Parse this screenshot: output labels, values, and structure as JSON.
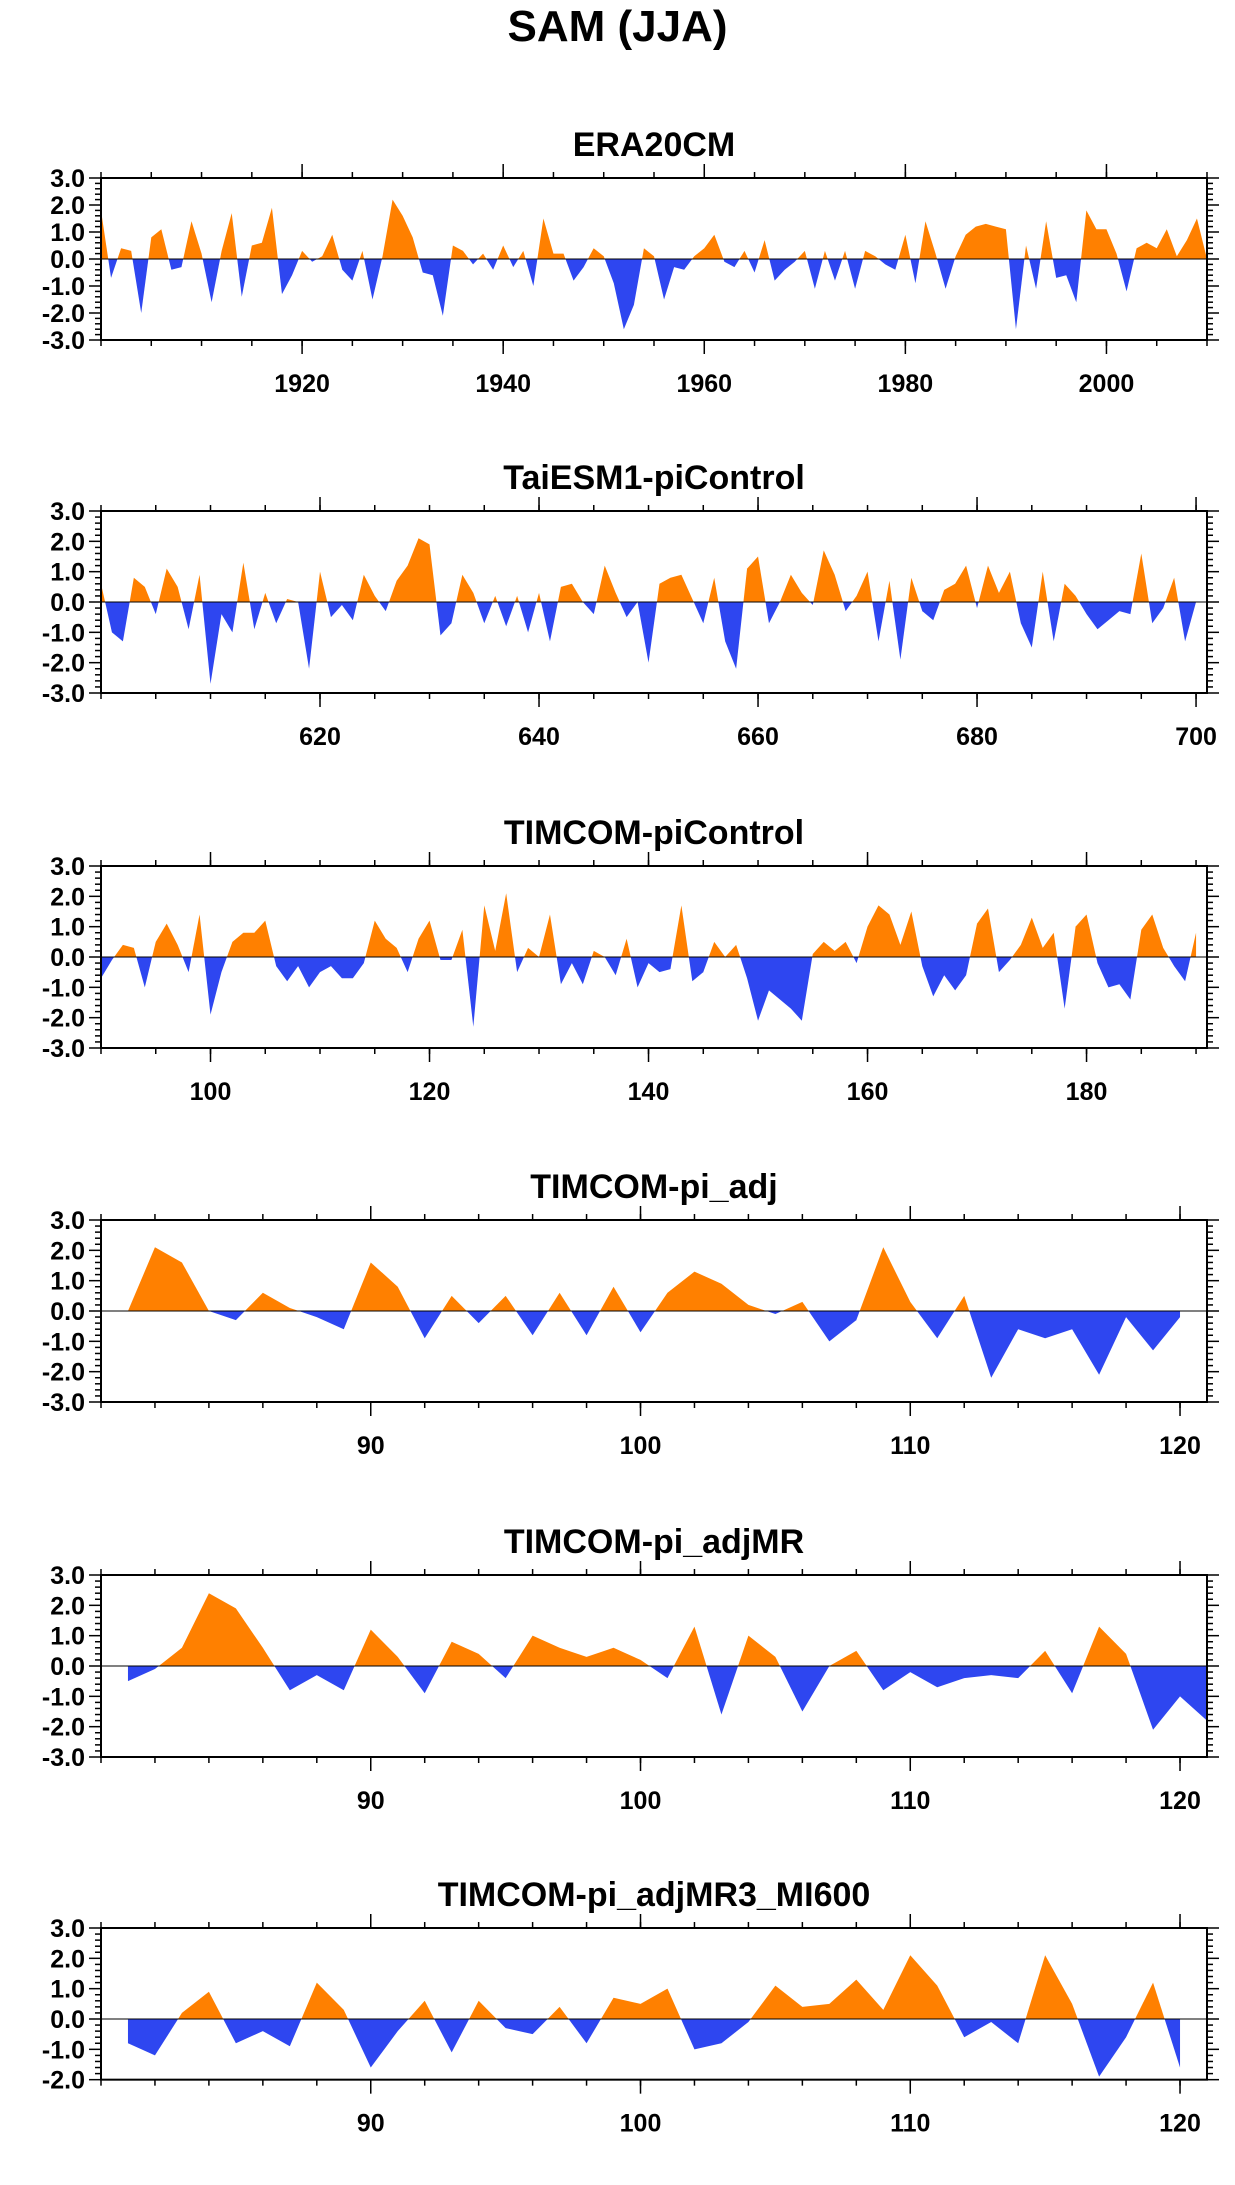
{
  "figure": {
    "title": "SAM (JJA)"
  },
  "colors": {
    "positive": "#ff8000",
    "negative": "#2e46f0",
    "axis": "#000000"
  },
  "chart_data": [
    {
      "type": "area",
      "title": "ERA20CM",
      "xlim": [
        1900,
        2010
      ],
      "ylim": [
        -3.0,
        3.0
      ],
      "yticks": [
        "3.0",
        "2.0",
        "1.0",
        "0.0",
        "-1.0",
        "-2.0",
        "-3.0"
      ],
      "xticks": [
        "1920",
        "1940",
        "1960",
        "1980",
        "2000"
      ],
      "xtick_values": [
        1920,
        1940,
        1960,
        1980,
        2000
      ],
      "x_start": 1900,
      "x_step": 1,
      "values": [
        1.8,
        -0.7,
        0.4,
        0.3,
        -2.0,
        0.8,
        1.1,
        -0.4,
        -0.3,
        1.4,
        0.2,
        -1.6,
        0.3,
        1.7,
        -1.4,
        0.5,
        0.6,
        1.9,
        -1.3,
        -0.6,
        0.3,
        -0.1,
        0.1,
        0.9,
        -0.4,
        -0.8,
        0.3,
        -1.5,
        0.1,
        2.2,
        1.6,
        0.8,
        -0.5,
        -0.6,
        -2.1,
        0.5,
        0.3,
        -0.2,
        0.2,
        -0.4,
        0.5,
        -0.3,
        0.3,
        -1.0,
        1.5,
        0.2,
        0.2,
        -0.8,
        -0.3,
        0.4,
        0.1,
        -0.9,
        -2.6,
        -1.7,
        0.4,
        0.1,
        -1.5,
        -0.3,
        -0.4,
        0.1,
        0.4,
        0.9,
        -0.1,
        -0.3,
        0.3,
        -0.5,
        0.7,
        -0.8,
        -0.4,
        -0.1,
        0.3,
        -1.1,
        0.3,
        -0.8,
        0.3,
        -1.1,
        0.3,
        0.1,
        -0.2,
        -0.4,
        0.9,
        -0.9,
        1.4,
        0.2,
        -1.1,
        0.1,
        0.9,
        1.2,
        1.3,
        1.2,
        1.1,
        -2.6,
        0.5,
        -1.1,
        1.4,
        -0.7,
        -0.6,
        -1.6,
        1.8,
        1.1,
        1.1,
        0.2,
        -1.2,
        0.4,
        0.6,
        0.4,
        1.1,
        0.1,
        0.7,
        1.5,
        0.0
      ]
    },
    {
      "type": "area",
      "title": "TaiESM1-piControl",
      "xlim": [
        600,
        701
      ],
      "ylim": [
        -3.0,
        3.0
      ],
      "yticks": [
        "3.0",
        "2.0",
        "1.0",
        "0.0",
        "-1.0",
        "-2.0",
        "-3.0"
      ],
      "xticks": [
        "620",
        "640",
        "660",
        "680",
        "700"
      ],
      "xtick_values": [
        620,
        640,
        660,
        680,
        700
      ],
      "x_start": 600,
      "x_step": 1,
      "values": [
        0.6,
        -1.0,
        -1.3,
        0.8,
        0.5,
        -0.4,
        1.1,
        0.5,
        -0.9,
        0.9,
        -2.7,
        -0.4,
        -1.0,
        1.3,
        -0.9,
        0.3,
        -0.7,
        0.1,
        0.0,
        -2.2,
        1.0,
        -0.5,
        -0.1,
        -0.6,
        0.9,
        0.2,
        -0.3,
        0.7,
        1.2,
        2.1,
        1.9,
        -1.1,
        -0.7,
        0.9,
        0.3,
        -0.7,
        0.2,
        -0.8,
        0.2,
        -1.0,
        0.3,
        -1.3,
        0.5,
        0.6,
        0.0,
        -0.4,
        1.2,
        0.3,
        -0.5,
        0.0,
        -2.0,
        0.6,
        0.8,
        0.9,
        0.1,
        -0.7,
        0.8,
        -1.3,
        -2.2,
        1.1,
        1.5,
        -0.7,
        0.0,
        0.9,
        0.3,
        -0.1,
        1.7,
        0.9,
        -0.3,
        0.2,
        1.0,
        -1.3,
        0.7,
        -1.9,
        0.8,
        -0.3,
        -0.6,
        0.4,
        0.6,
        1.2,
        -0.2,
        1.2,
        0.3,
        1.0,
        -0.7,
        -1.5,
        1.0,
        -1.3,
        0.6,
        0.2,
        -0.4,
        -0.9,
        -0.6,
        -0.3,
        -0.4,
        1.6,
        -0.7,
        -0.2,
        0.8,
        -1.3,
        0.0
      ]
    },
    {
      "type": "area",
      "title": "TIMCOM-piControl",
      "xlim": [
        90,
        191
      ],
      "ylim": [
        -3.0,
        3.0
      ],
      "yticks": [
        "3.0",
        "2.0",
        "1.0",
        "0.0",
        "-1.0",
        "-2.0",
        "-3.0"
      ],
      "xticks": [
        "100",
        "120",
        "140",
        "160",
        "180"
      ],
      "xtick_values": [
        100,
        120,
        140,
        160,
        180
      ],
      "x_start": 90,
      "x_step": 1,
      "values": [
        -0.7,
        -0.1,
        0.4,
        0.3,
        -1.0,
        0.5,
        1.1,
        0.4,
        -0.5,
        1.4,
        -1.9,
        -0.5,
        0.5,
        0.8,
        0.8,
        1.2,
        -0.3,
        -0.8,
        -0.3,
        -1.0,
        -0.5,
        -0.3,
        -0.7,
        -0.7,
        -0.2,
        1.2,
        0.6,
        0.3,
        -0.5,
        0.6,
        1.2,
        -0.1,
        -0.1,
        0.9,
        -2.3,
        1.7,
        0.2,
        2.1,
        -0.5,
        0.3,
        0.0,
        1.4,
        -0.9,
        -0.2,
        -0.9,
        0.2,
        0.0,
        -0.6,
        0.6,
        -1.0,
        -0.2,
        -0.5,
        -0.4,
        1.7,
        -0.8,
        -0.5,
        0.5,
        0.0,
        0.4,
        -0.7,
        -2.1,
        -1.1,
        -1.4,
        -1.7,
        -2.1,
        0.1,
        0.5,
        0.2,
        0.5,
        -0.2,
        1.0,
        1.7,
        1.4,
        0.4,
        1.5,
        -0.3,
        -1.3,
        -0.6,
        -1.1,
        -0.6,
        1.1,
        1.6,
        -0.5,
        -0.1,
        0.4,
        1.3,
        0.3,
        0.8,
        -1.7,
        1.0,
        1.4,
        -0.2,
        -1.0,
        -0.9,
        -1.4,
        0.9,
        1.4,
        0.3,
        -0.3,
        -0.8,
        0.8
      ]
    },
    {
      "type": "area",
      "title": "TIMCOM-pi_adj",
      "xlim": [
        80,
        121
      ],
      "ylim": [
        -3.0,
        3.0
      ],
      "yticks": [
        "3.0",
        "2.0",
        "1.0",
        "0.0",
        "-1.0",
        "-2.0",
        "-3.0"
      ],
      "xticks": [
        "90",
        "100",
        "110",
        "120"
      ],
      "xtick_values": [
        90,
        100,
        110,
        120
      ],
      "x_start": 81,
      "x_step": 1,
      "values": [
        0.0,
        2.1,
        1.6,
        0.0,
        -0.3,
        0.6,
        0.1,
        -0.2,
        -0.6,
        1.6,
        0.8,
        -0.9,
        0.5,
        -0.4,
        0.5,
        -0.8,
        0.6,
        -0.8,
        0.8,
        -0.7,
        0.6,
        1.3,
        0.9,
        0.2,
        -0.1,
        0.3,
        -1.0,
        -0.3,
        2.1,
        0.3,
        -0.9,
        0.5,
        -2.2,
        -0.6,
        -0.9,
        -0.6,
        -2.1,
        -0.2,
        -1.3,
        -0.2
      ]
    },
    {
      "type": "area",
      "title": "TIMCOM-pi_adjMR",
      "xlim": [
        80,
        121
      ],
      "ylim": [
        -3.0,
        3.0
      ],
      "yticks": [
        "3.0",
        "2.0",
        "1.0",
        "0.0",
        "-1.0",
        "-2.0",
        "-3.0"
      ],
      "xticks": [
        "90",
        "100",
        "110",
        "120"
      ],
      "xtick_values": [
        90,
        100,
        110,
        120
      ],
      "x_start": 81,
      "x_step": 1,
      "values": [
        -0.5,
        -0.1,
        0.6,
        2.4,
        1.9,
        0.6,
        -0.8,
        -0.3,
        -0.8,
        1.2,
        0.3,
        -0.9,
        0.8,
        0.4,
        -0.4,
        1.0,
        0.6,
        0.3,
        0.6,
        0.2,
        -0.4,
        1.3,
        -1.6,
        1.0,
        0.3,
        -1.5,
        0.0,
        0.5,
        -0.8,
        -0.2,
        -0.7,
        -0.4,
        -0.3,
        -0.4,
        0.5,
        -0.9,
        1.3,
        0.4,
        -2.1,
        -1.0,
        -1.8
      ]
    },
    {
      "type": "area",
      "title": "TIMCOM-pi_adjMR3_MI600",
      "xlim": [
        80,
        121
      ],
      "ylim": [
        -2.0,
        3.0
      ],
      "yticks": [
        "3.0",
        "2.0",
        "1.0",
        "0.0",
        "-1.0",
        "-2.0"
      ],
      "xticks": [
        "90",
        "100",
        "110",
        "120"
      ],
      "xtick_values": [
        90,
        100,
        110,
        120
      ],
      "x_start": 81,
      "x_step": 1,
      "values": [
        -0.8,
        -1.2,
        0.2,
        0.9,
        -0.8,
        -0.4,
        -0.9,
        1.2,
        0.3,
        -1.6,
        -0.4,
        0.6,
        -1.1,
        0.6,
        -0.3,
        -0.5,
        0.4,
        -0.8,
        0.7,
        0.5,
        1.0,
        -1.0,
        -0.8,
        -0.1,
        1.1,
        0.4,
        0.5,
        1.3,
        0.3,
        2.1,
        1.1,
        -0.6,
        -0.1,
        -0.8,
        2.1,
        0.5,
        -1.9,
        -0.6,
        1.2,
        -1.6
      ]
    }
  ]
}
